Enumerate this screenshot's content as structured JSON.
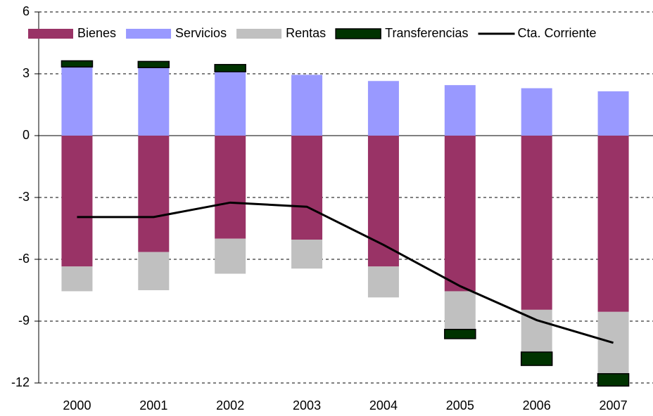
{
  "chart_data": {
    "type": "stacked-bar-line",
    "categories": [
      "2000",
      "2001",
      "2002",
      "2003",
      "2004",
      "2005",
      "2006",
      "2007"
    ],
    "series": [
      {
        "name": "Bienes",
        "color": "#993366",
        "values": [
          -6.35,
          -5.65,
          -5.0,
          -5.05,
          -6.35,
          -7.55,
          -8.45,
          -8.55
        ]
      },
      {
        "name": "Servicios",
        "color": "#9999ff",
        "values": [
          3.33,
          3.3,
          3.1,
          2.95,
          2.65,
          2.45,
          2.3,
          2.15
        ]
      },
      {
        "name": "Rentas",
        "color": "#c0c0c0",
        "values": [
          -1.2,
          -1.85,
          -1.7,
          -1.4,
          -1.5,
          -1.85,
          -2.05,
          -3.0
        ]
      },
      {
        "name": "Transferencias",
        "color": "#003300",
        "values": [
          0.3,
          0.3,
          0.35,
          0,
          0,
          -0.45,
          -0.65,
          -0.6
        ]
      },
      {
        "name": "Cta. Corriente",
        "color": "#000000",
        "kind": "line",
        "values": [
          -3.95,
          -3.95,
          -3.25,
          -3.45,
          -5.3,
          -7.3,
          -8.95,
          -10.05
        ]
      }
    ],
    "ylim": [
      -12,
      6
    ],
    "yticks": [
      -12,
      -9,
      -6,
      -3,
      0,
      3,
      6
    ],
    "grid": true
  }
}
